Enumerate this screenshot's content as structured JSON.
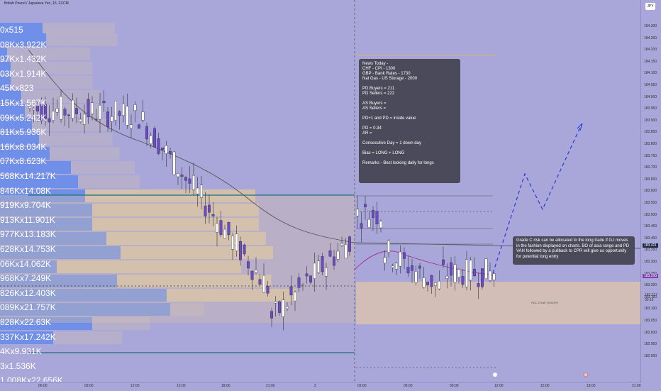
{
  "header": {
    "title": "British Pound / Japanese Yen, 15, FXCM",
    "currency": "JPY"
  },
  "volume_profile_labels": [
    "0x515",
    "08Kx3.922K",
    "97Kx1.432K",
    "03Kx1.914K",
    "45Kx823",
    "15Kx1.567K",
    "09Kx5.242K",
    "81Kx5.936K",
    "16Kx8.034K",
    "07Kx8.623K",
    "568Kx14.217K",
    "846Kx14.08K",
    "919Kx9.704K",
    "913Kx11.901K",
    "977Kx13.183K",
    "628Kx14.753K",
    "06Kx14.062K",
    "968Kx7.249K",
    "826Kx12.403K",
    "089Kx21.757K",
    "828Kx22.63K",
    "337Kx17.242K",
    "4Kx9.931K",
    "3x1.536K",
    "1.008Kx22.656K"
  ],
  "price_axis": [
    "184.300",
    "184.250",
    "184.200",
    "184.150",
    "184.100",
    "184.050",
    "184.000",
    "183.950",
    "183.900",
    "183.850",
    "183.800",
    "183.750",
    "183.700",
    "183.650",
    "183.600",
    "183.550",
    "183.500",
    "183.450",
    "183.400",
    "183.350",
    "183.300",
    "183.250",
    "183.200",
    "183.150",
    "183.100",
    "183.050",
    "183.000",
    "182.950",
    "182.900"
  ],
  "price_tags": {
    "last_price": "183.411",
    "current_price": "183.293",
    "bid": "183.217",
    "countdown": "00:16"
  },
  "time_axis": [
    "06:00",
    "09:00",
    "12:00",
    "15:00",
    "18:00",
    "21:00",
    "2",
    "03:00",
    "06:00",
    "09:00",
    "12:00",
    "15:00",
    "18:00",
    "21:00"
  ],
  "news_box": {
    "lines": [
      "News Today -",
      "CHF - CPI - 1300",
      "GBP - Bank Rates - 1730",
      "Nat Gas - US Storage - 2000",
      "",
      "PD Buyers = 211",
      "PD Sellers = 222",
      "",
      "AS Buyers =",
      "AS Sellers =",
      "",
      "PD+1 and PD = inside value",
      "",
      "PD = 0.34",
      "AR =",
      "",
      "Consecutive Day = 1 down day",
      "",
      "Bias = LONG + LONG",
      "",
      "Remarks - Best looking daily for longs"
    ]
  },
  "risk_box": {
    "text": "Grade C risk can be allocated to the long trade if GJ moves in the fashion displayed on charts. BO of asia range and PD VAH followed by a pullback to CPR will give us opportunity for potential long entry"
  },
  "zone_label": "PDC ZONE (SHORT)",
  "colors": {
    "background": "#a9a7d9",
    "profile_blue": "#6f8fe8",
    "profile_tan": "#d8c3a8",
    "candle_up": "#ffffff",
    "candle_down": "#6b4ac8",
    "teal_line": "#1f6f7a",
    "orange_line": "#e0b070"
  }
}
